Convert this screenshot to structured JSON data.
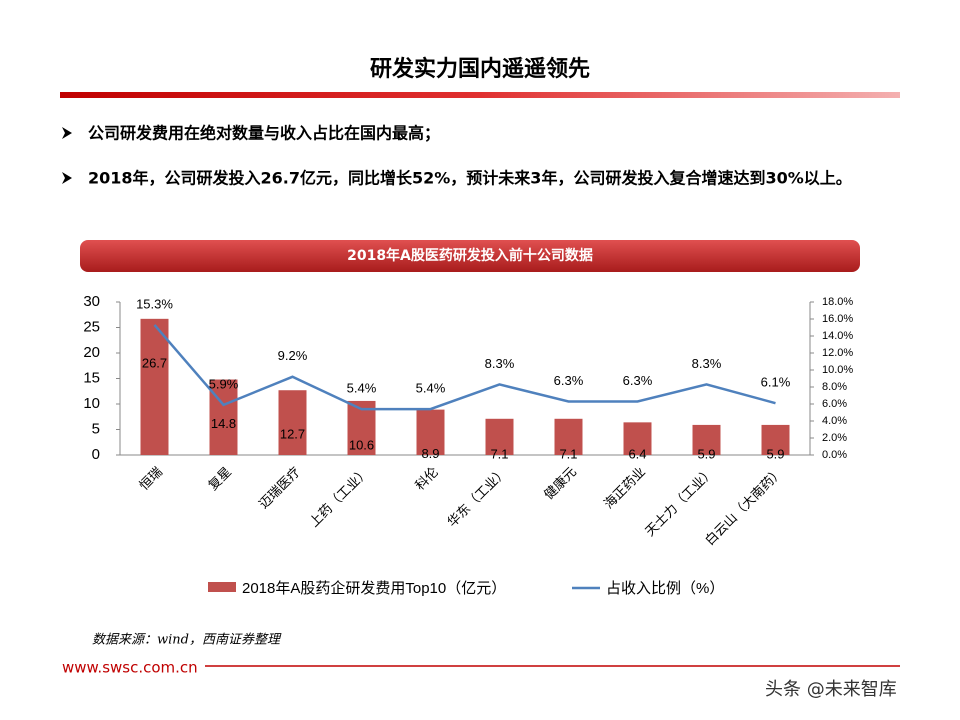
{
  "header": {
    "title": "研发实力国内遥遥领先"
  },
  "bullets": [
    "公司研发费用在绝对数量与收入占比在国内最高；",
    "2018年，公司研发投入26.7亿元，同比增长52%，预计未来3年，公司研发投入复合增速达到30%以上。"
  ],
  "chart_data": {
    "type": "bar-line",
    "title": "2018年A股医药研发投入前十公司数据",
    "categories": [
      "恒瑞",
      "复星",
      "迈瑞医疗",
      "上药（工业）",
      "科伦",
      "华东（工业）",
      "健康元",
      "海正药业",
      "天士力（工业）",
      "白云山（大南药）"
    ],
    "series": [
      {
        "name": "2018年A股药企研发费用Top10（亿元）",
        "type": "bar",
        "color": "#c0504d",
        "values": [
          26.7,
          14.8,
          12.7,
          10.6,
          8.9,
          7.1,
          7.1,
          6.4,
          5.9,
          5.9
        ]
      },
      {
        "name": "占收入比例（%）",
        "type": "line",
        "axis": "y2",
        "color": "#4f81bd",
        "values": [
          15.3,
          5.9,
          9.2,
          5.4,
          5.4,
          8.3,
          6.3,
          6.3,
          8.3,
          6.1
        ],
        "value_labels": [
          "15.3%",
          "5.9%",
          "9.2%",
          "5.4%",
          "5.4%",
          "8.3%",
          "6.3%",
          "6.3%",
          "8.3%",
          "6.1%"
        ]
      }
    ],
    "ylim": [
      0,
      30
    ],
    "yticks": [
      0,
      5,
      10,
      15,
      20,
      25,
      30
    ],
    "y2lim": [
      0,
      18
    ],
    "y2ticks": [
      {
        "value": 0,
        "label": "0.0%"
      },
      {
        "value": 2,
        "label": "2.0%"
      },
      {
        "value": 4,
        "label": "4.0%"
      },
      {
        "value": 6,
        "label": "6.0%"
      },
      {
        "value": 8,
        "label": "8.0%"
      },
      {
        "value": 10,
        "label": "10.0%"
      },
      {
        "value": 12,
        "label": "12.0%"
      },
      {
        "value": 14,
        "label": "14.0%"
      },
      {
        "value": 16,
        "label": "16.0%"
      },
      {
        "value": 18,
        "label": "18.0%"
      }
    ],
    "legend": "bottom",
    "grid": false
  },
  "source": "数据来源：wind，西南证券整理",
  "footer": {
    "url": "www.swsc.com.cn",
    "watermark": "头条 @未来智库"
  }
}
